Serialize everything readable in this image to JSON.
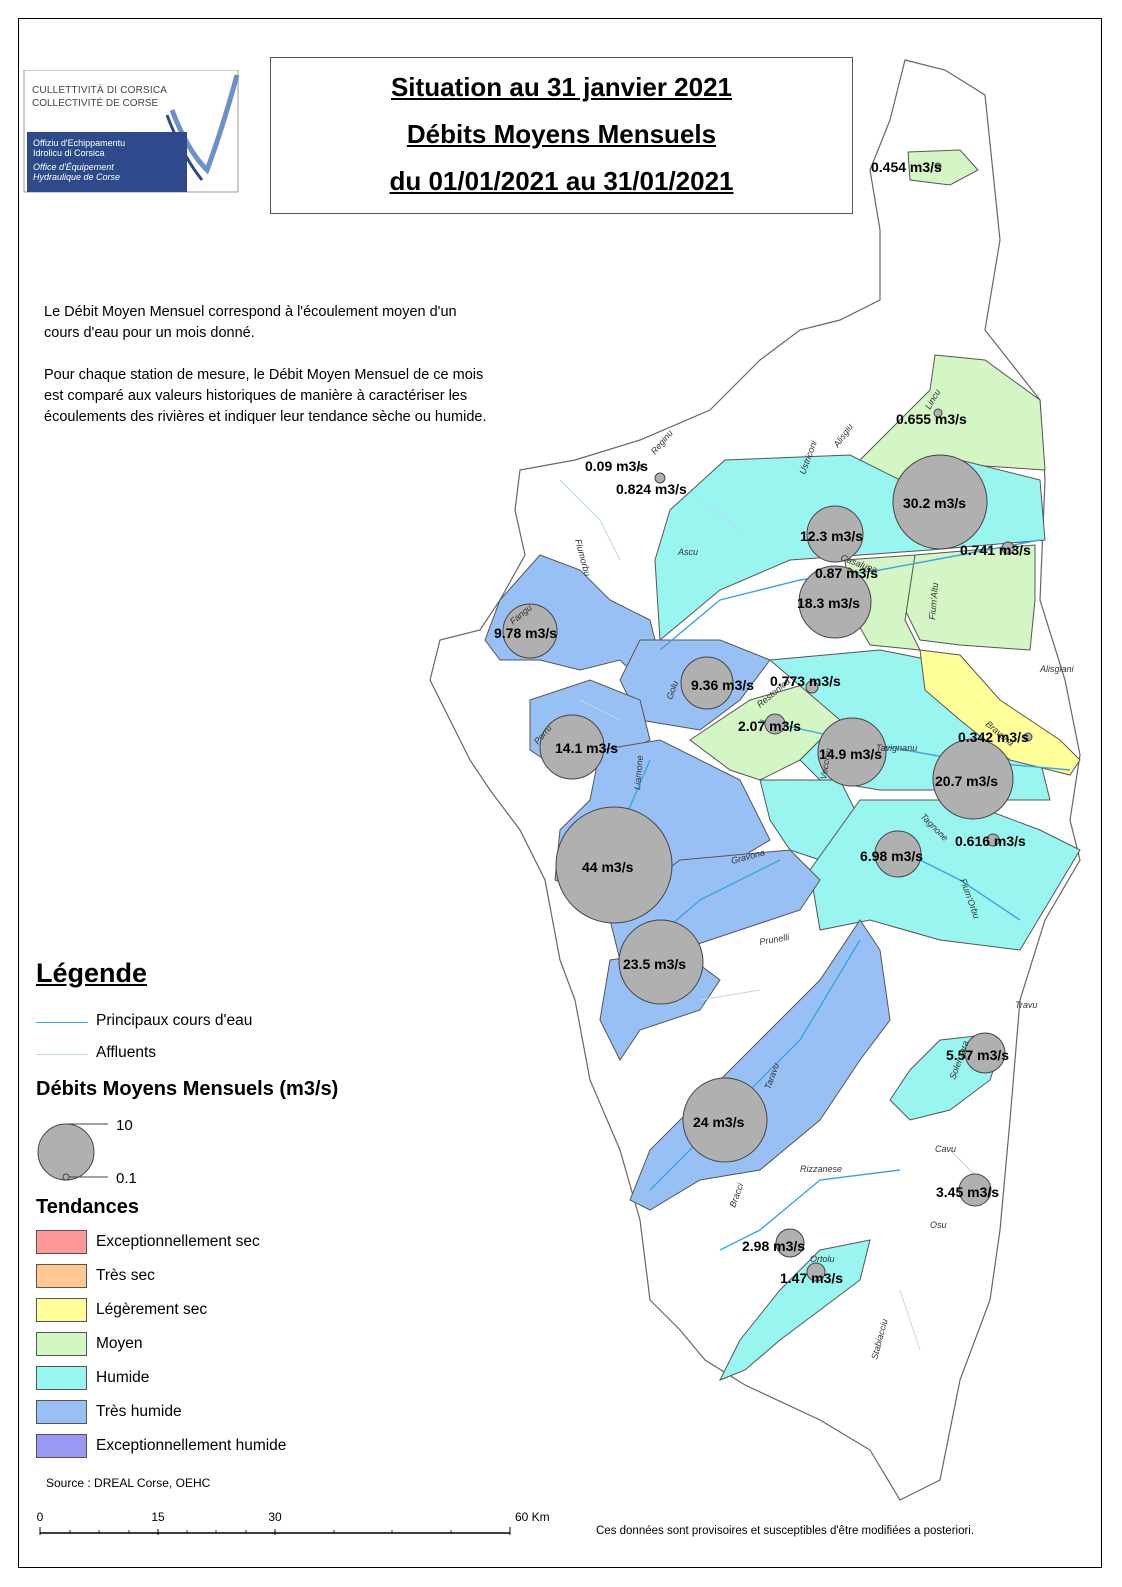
{
  "logo": {
    "line1": "CULLETTIVITÀ DI CORSICA",
    "line2": "COLLECTIVITÉ DE CORSE",
    "line3": "Offiziu d'Echippamentu",
    "line4": "Idrolicu di Corsica",
    "line5": "Office d'Équipement",
    "line6": "Hydraulique de Corse"
  },
  "title": {
    "line1": "Situation au 31 janvier 2021",
    "line2": "Débits Moyens Mensuels",
    "line3": "du 01/01/2021 au 31/01/2021"
  },
  "intro": {
    "p1": "Le Débit Moyen Mensuel correspond à l'écoulement moyen d'un cours d'eau pour un mois donné.",
    "p2": "Pour chaque station de mesure, le Débit Moyen Mensuel de ce mois est comparé aux valeurs historiques de manière à caractériser les écoulements des rivières et indiquer leur tendance sèche ou humide."
  },
  "legend": {
    "title": "Légende",
    "main_rivers": "Principaux cours d'eau",
    "tributaries": "Affluents",
    "flows_title": "Débits Moyens Mensuels (m3/s)",
    "size_large": "10",
    "size_small": "0.1",
    "trends_title": "Tendances",
    "trends": [
      {
        "label": "Exceptionnellement sec",
        "color": "#ff9999"
      },
      {
        "label": "Très sec",
        "color": "#ffc890"
      },
      {
        "label": "Légèrement sec",
        "color": "#ffff99"
      },
      {
        "label": "Moyen",
        "color": "#d4f5c4"
      },
      {
        "label": "Humide",
        "color": "#99f5f0"
      },
      {
        "label": "Très humide",
        "color": "#99c0f5"
      },
      {
        "label": "Exceptionnellement humide",
        "color": "#9999f5"
      }
    ]
  },
  "stations": [
    {
      "label": "0.454 m3/s",
      "value": 0.454
    },
    {
      "label": "0.655 m3/s",
      "value": 0.655
    },
    {
      "label": "0.09 m3/s",
      "value": 0.09
    },
    {
      "label": "0.824 m3/s",
      "value": 0.824
    },
    {
      "label": "30.2 m3/s",
      "value": 30.2
    },
    {
      "label": "12.3 m3/s",
      "value": 12.3
    },
    {
      "label": "0.741 m3/s",
      "value": 0.741
    },
    {
      "label": "0.87 m3/s",
      "value": 0.87
    },
    {
      "label": "18.3 m3/s",
      "value": 18.3
    },
    {
      "label": "9.78 m3/s",
      "value": 9.78
    },
    {
      "label": "9.36 m3/s",
      "value": 9.36
    },
    {
      "label": "0.773 m3/s",
      "value": 0.773
    },
    {
      "label": "2.07 m3/s",
      "value": 2.07
    },
    {
      "label": "14.1 m3/s",
      "value": 14.1
    },
    {
      "label": "14.9 m3/s",
      "value": 14.9
    },
    {
      "label": "0.342 m3/s",
      "value": 0.342
    },
    {
      "label": "20.7 m3/s",
      "value": 20.7
    },
    {
      "label": "0.616 m3/s",
      "value": 0.616
    },
    {
      "label": "6.98 m3/s",
      "value": 6.98
    },
    {
      "label": "44 m3/s",
      "value": 44
    },
    {
      "label": "23.5 m3/s",
      "value": 23.5
    },
    {
      "label": "5.57 m3/s",
      "value": 5.57
    },
    {
      "label": "24 m3/s",
      "value": 24
    },
    {
      "label": "3.45 m3/s",
      "value": 3.45
    },
    {
      "label": "2.98 m3/s",
      "value": 2.98
    },
    {
      "label": "1.47 m3/s",
      "value": 1.47
    }
  ],
  "rivers": [
    "Reginu",
    "Fiumorbu",
    "Lincu",
    "Alisgiu",
    "Ustriconi",
    "Ascu",
    "Casaluna",
    "Fium'Altu",
    "Fangu",
    "Golu",
    "Porru",
    "Liamone",
    "Restonica",
    "Vecchju",
    "Tavignanu",
    "Bravona",
    "Alisgiani",
    "Tagnone",
    "Fium'Orbu",
    "Gravona",
    "Prunelli",
    "Taravu",
    "Travu",
    "Solenzara",
    "Cavu",
    "Osu",
    "Rizzanese",
    "Bracci",
    "Ortolu",
    "Stabiacciu",
    "Figarella"
  ],
  "scale": {
    "t0": "0",
    "t1": "15",
    "t2": "30",
    "t3": "60 Km"
  },
  "source": "Source : DREAL Corse, OEHC",
  "disclaimer": "Ces données sont provisoires et susceptibles d'être modifiées a posteriori.",
  "colors": {
    "main_river": "#3aa6e0",
    "tributary": "#bcd8ea",
    "bubble": "#b0b0b0"
  }
}
